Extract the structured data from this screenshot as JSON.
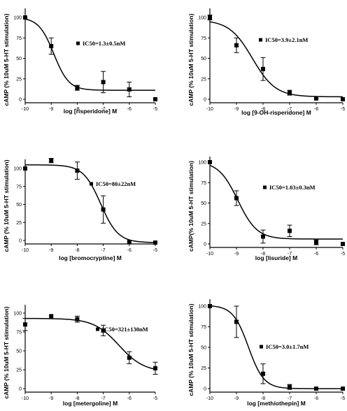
{
  "chart_data": [
    {
      "type": "scatter",
      "xlabel": "log [risperidone] M",
      "ylabel": "cAMP (% 10uM 5-HT stimulation)",
      "xlim": [
        -10,
        -5
      ],
      "ylim": [
        0,
        100
      ],
      "xticks": [
        "-10",
        "-9",
        "-8",
        "-7",
        "-6",
        "-5"
      ],
      "yticks": [
        "0",
        "25",
        "50",
        "75",
        "100"
      ],
      "legend": "IC50=1.3±0.5nM",
      "points": [
        {
          "x": -10,
          "y": 100,
          "err": 0
        },
        {
          "x": -9,
          "y": 65,
          "err": 10
        },
        {
          "x": -8,
          "y": 14,
          "err": 3
        },
        {
          "x": -7,
          "y": 21,
          "err": 13
        },
        {
          "x": -6,
          "y": 12,
          "err": 9
        },
        {
          "x": -5,
          "y": 0,
          "err": 0
        }
      ],
      "curve": {
        "top": 100,
        "bottom": 11,
        "log_ic50": -8.9,
        "hill": 1.5
      }
    },
    {
      "type": "scatter",
      "xlabel": "log [9-OH-risperidone] M",
      "ylabel": "cAMP (% 10uM 5-HT stimulation)",
      "xlim": [
        -10,
        -5
      ],
      "ylim": [
        0,
        100
      ],
      "xticks": [
        "-10",
        "-9",
        "-8",
        "-7",
        "-6",
        "-5"
      ],
      "yticks": [
        "0",
        "25",
        "50",
        "75",
        "100"
      ],
      "legend": "IC50=3.9±2.1nM",
      "points": [
        {
          "x": -10,
          "y": 100,
          "err": 3
        },
        {
          "x": -9,
          "y": 66,
          "err": 9
        },
        {
          "x": -8,
          "y": 37,
          "err": 14
        },
        {
          "x": -7,
          "y": 8,
          "err": 3
        },
        {
          "x": -6,
          "y": 1,
          "err": 0
        },
        {
          "x": -5,
          "y": 0,
          "err": 0
        }
      ],
      "curve": {
        "top": 97,
        "bottom": 3,
        "log_ic50": -8.4,
        "hill": 1.0
      }
    },
    {
      "type": "scatter",
      "xlabel": "log [bromocryptine] M",
      "ylabel": "cAMP (% 10uM 5-HT stimulation)",
      "xlim": [
        -10,
        -5
      ],
      "ylim": [
        0,
        100
      ],
      "xticks": [
        "-10",
        "-9",
        "-8",
        "-7",
        "-6",
        "-5"
      ],
      "yticks": [
        "0",
        "25",
        "50",
        "75",
        "100"
      ],
      "legend": "IC50=80±22nM",
      "points": [
        {
          "x": -10,
          "y": 100,
          "err": 0
        },
        {
          "x": -9,
          "y": 111,
          "err": 3
        },
        {
          "x": -8,
          "y": 97,
          "err": 12
        },
        {
          "x": -7,
          "y": 43,
          "err": 19
        },
        {
          "x": -6,
          "y": -2,
          "err": 0
        },
        {
          "x": -5,
          "y": -3,
          "err": 0
        }
      ],
      "curve": {
        "top": 105,
        "bottom": -3,
        "log_ic50": -7.1,
        "hill": 1.3
      }
    },
    {
      "type": "scatter",
      "xlabel": "log [lisuride] M",
      "ylabel": "cAMP(% 10uM 5-HT stimulation)",
      "xlim": [
        -10,
        -5
      ],
      "ylim": [
        0,
        100
      ],
      "xticks": [
        "-10",
        "-9",
        "-8",
        "-7",
        "-6",
        "-5"
      ],
      "yticks": [
        "0",
        "25",
        "50",
        "75",
        "100"
      ],
      "legend": "IC50=1.03±0.3nM",
      "points": [
        {
          "x": -10,
          "y": 100,
          "err": 0
        },
        {
          "x": -9,
          "y": 56,
          "err": 9
        },
        {
          "x": -8,
          "y": 9,
          "err": 8
        },
        {
          "x": -7,
          "y": 16,
          "err": 7
        },
        {
          "x": -6,
          "y": 2,
          "err": 3
        },
        {
          "x": -5,
          "y": 0,
          "err": 0
        }
      ],
      "curve": {
        "top": 101,
        "bottom": 6,
        "log_ic50": -8.95,
        "hill": 1.2
      }
    },
    {
      "type": "scatter",
      "xlabel": "log [metergoline] M",
      "ylabel": "cAMP (% 10uM 5-HT stimulation)",
      "xlim": [
        -10,
        -5
      ],
      "ylim": [
        0,
        100
      ],
      "xticks": [
        "-10",
        "-9",
        "-8",
        "-7",
        "-6",
        "-5"
      ],
      "yticks": [
        "0",
        "25",
        "50",
        "75",
        "100"
      ],
      "legend": "IC50=321±130nM",
      "points": [
        {
          "x": -10,
          "y": 85,
          "err": 8
        },
        {
          "x": -9,
          "y": 96,
          "err": 0
        },
        {
          "x": -8,
          "y": 92,
          "err": 4
        },
        {
          "x": -7,
          "y": 77,
          "err": 7
        },
        {
          "x": -6,
          "y": 41,
          "err": 8
        },
        {
          "x": -5,
          "y": 27,
          "err": 8
        }
      ],
      "curve": {
        "top": 93,
        "bottom": 22,
        "log_ic50": -6.4,
        "hill": 0.9
      }
    },
    {
      "type": "scatter",
      "xlabel": "log [methiothepin] M",
      "ylabel": "cAMP (% 10uM 5-HT stimulation)",
      "xlim": [
        -10,
        -5
      ],
      "ylim": [
        0,
        100
      ],
      "xticks": [
        "-10",
        "-9",
        "-8",
        "-7",
        "-6",
        "-5"
      ],
      "yticks": [
        "0",
        "25",
        "50",
        "75",
        "100"
      ],
      "legend": "IC50=3.0±1.7nM",
      "points": [
        {
          "x": -10,
          "y": 100,
          "err": 0
        },
        {
          "x": -9,
          "y": 81,
          "err": 19
        },
        {
          "x": -8,
          "y": 18,
          "err": 12
        },
        {
          "x": -7,
          "y": 2,
          "err": 3
        },
        {
          "x": -6,
          "y": 0,
          "err": 0
        },
        {
          "x": -5,
          "y": 0,
          "err": 0
        }
      ],
      "curve": {
        "top": 101,
        "bottom": 0,
        "log_ic50": -8.55,
        "hill": 1.5
      }
    }
  ]
}
